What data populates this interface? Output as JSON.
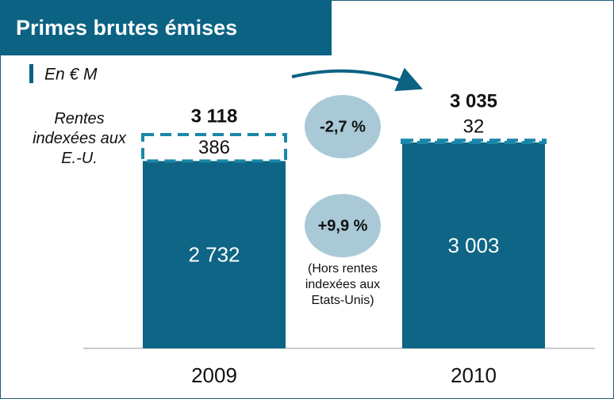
{
  "chart_data": {
    "type": "stacked_bar",
    "title": "Primes brutes émises",
    "subtitle": "En € M",
    "categories": [
      "2009",
      "2010"
    ],
    "series": [
      {
        "color": "#0e6585",
        "values": [
          2732,
          3003
        ],
        "value_labels": [
          "2 732",
          "3 003"
        ]
      },
      {
        "name": "Rentes indexées aux E.-U.",
        "color": "#1b87a8",
        "values": [
          386,
          32
        ],
        "value_labels": [
          "386",
          "32"
        ],
        "dashed": true
      }
    ],
    "totals": {
      "values": [
        3118,
        3035
      ],
      "value_labels": [
        "3 118",
        "3 035"
      ]
    },
    "annotations": [
      "-2,7 %",
      "+9,9 %",
      "(Hors rentes indexées aux Etats-Unis)"
    ]
  }
}
